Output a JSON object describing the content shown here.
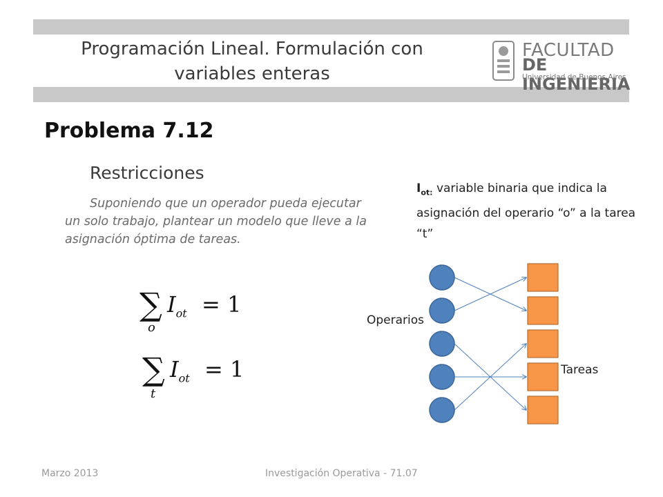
{
  "header": {
    "title_line1": "Programación Lineal. Formulación con",
    "title_line2": "variables enteras",
    "logo": {
      "line1": "FACULTAD",
      "line2": "DE INGENIERIA",
      "line3": "Universidad de Buenos Aires"
    }
  },
  "content": {
    "heading": "Problema 7.12",
    "subheading": "Restricciones",
    "paragraph": "Suponiendo que un operador pueda ejecutar un solo trabajo, plantear un modelo que lleve a la asignación óptima de tareas.",
    "formulas": [
      {
        "sum_index": "o",
        "var": "I",
        "var_sub": "ot",
        "rhs": "= 1"
      },
      {
        "sum_index": "t",
        "var": "I",
        "var_sub": "ot",
        "rhs": "= 1"
      }
    ],
    "definition": {
      "label": "I",
      "label_sub": "ot:",
      "text": " variable binaria que indica la asignación del operario “o” a la tarea “t”"
    }
  },
  "diagram": {
    "operators_label": "Operarios",
    "tasks_label": "Tareas",
    "operator_color": "#4f81bd",
    "task_color": "#f79646",
    "connections": [
      [
        1,
        2
      ],
      [
        2,
        1
      ],
      [
        3,
        5
      ],
      [
        4,
        4
      ],
      [
        5,
        3
      ]
    ]
  },
  "footer": {
    "date": "Marzo 2013",
    "course": "Investigación Operativa - 71.07"
  }
}
